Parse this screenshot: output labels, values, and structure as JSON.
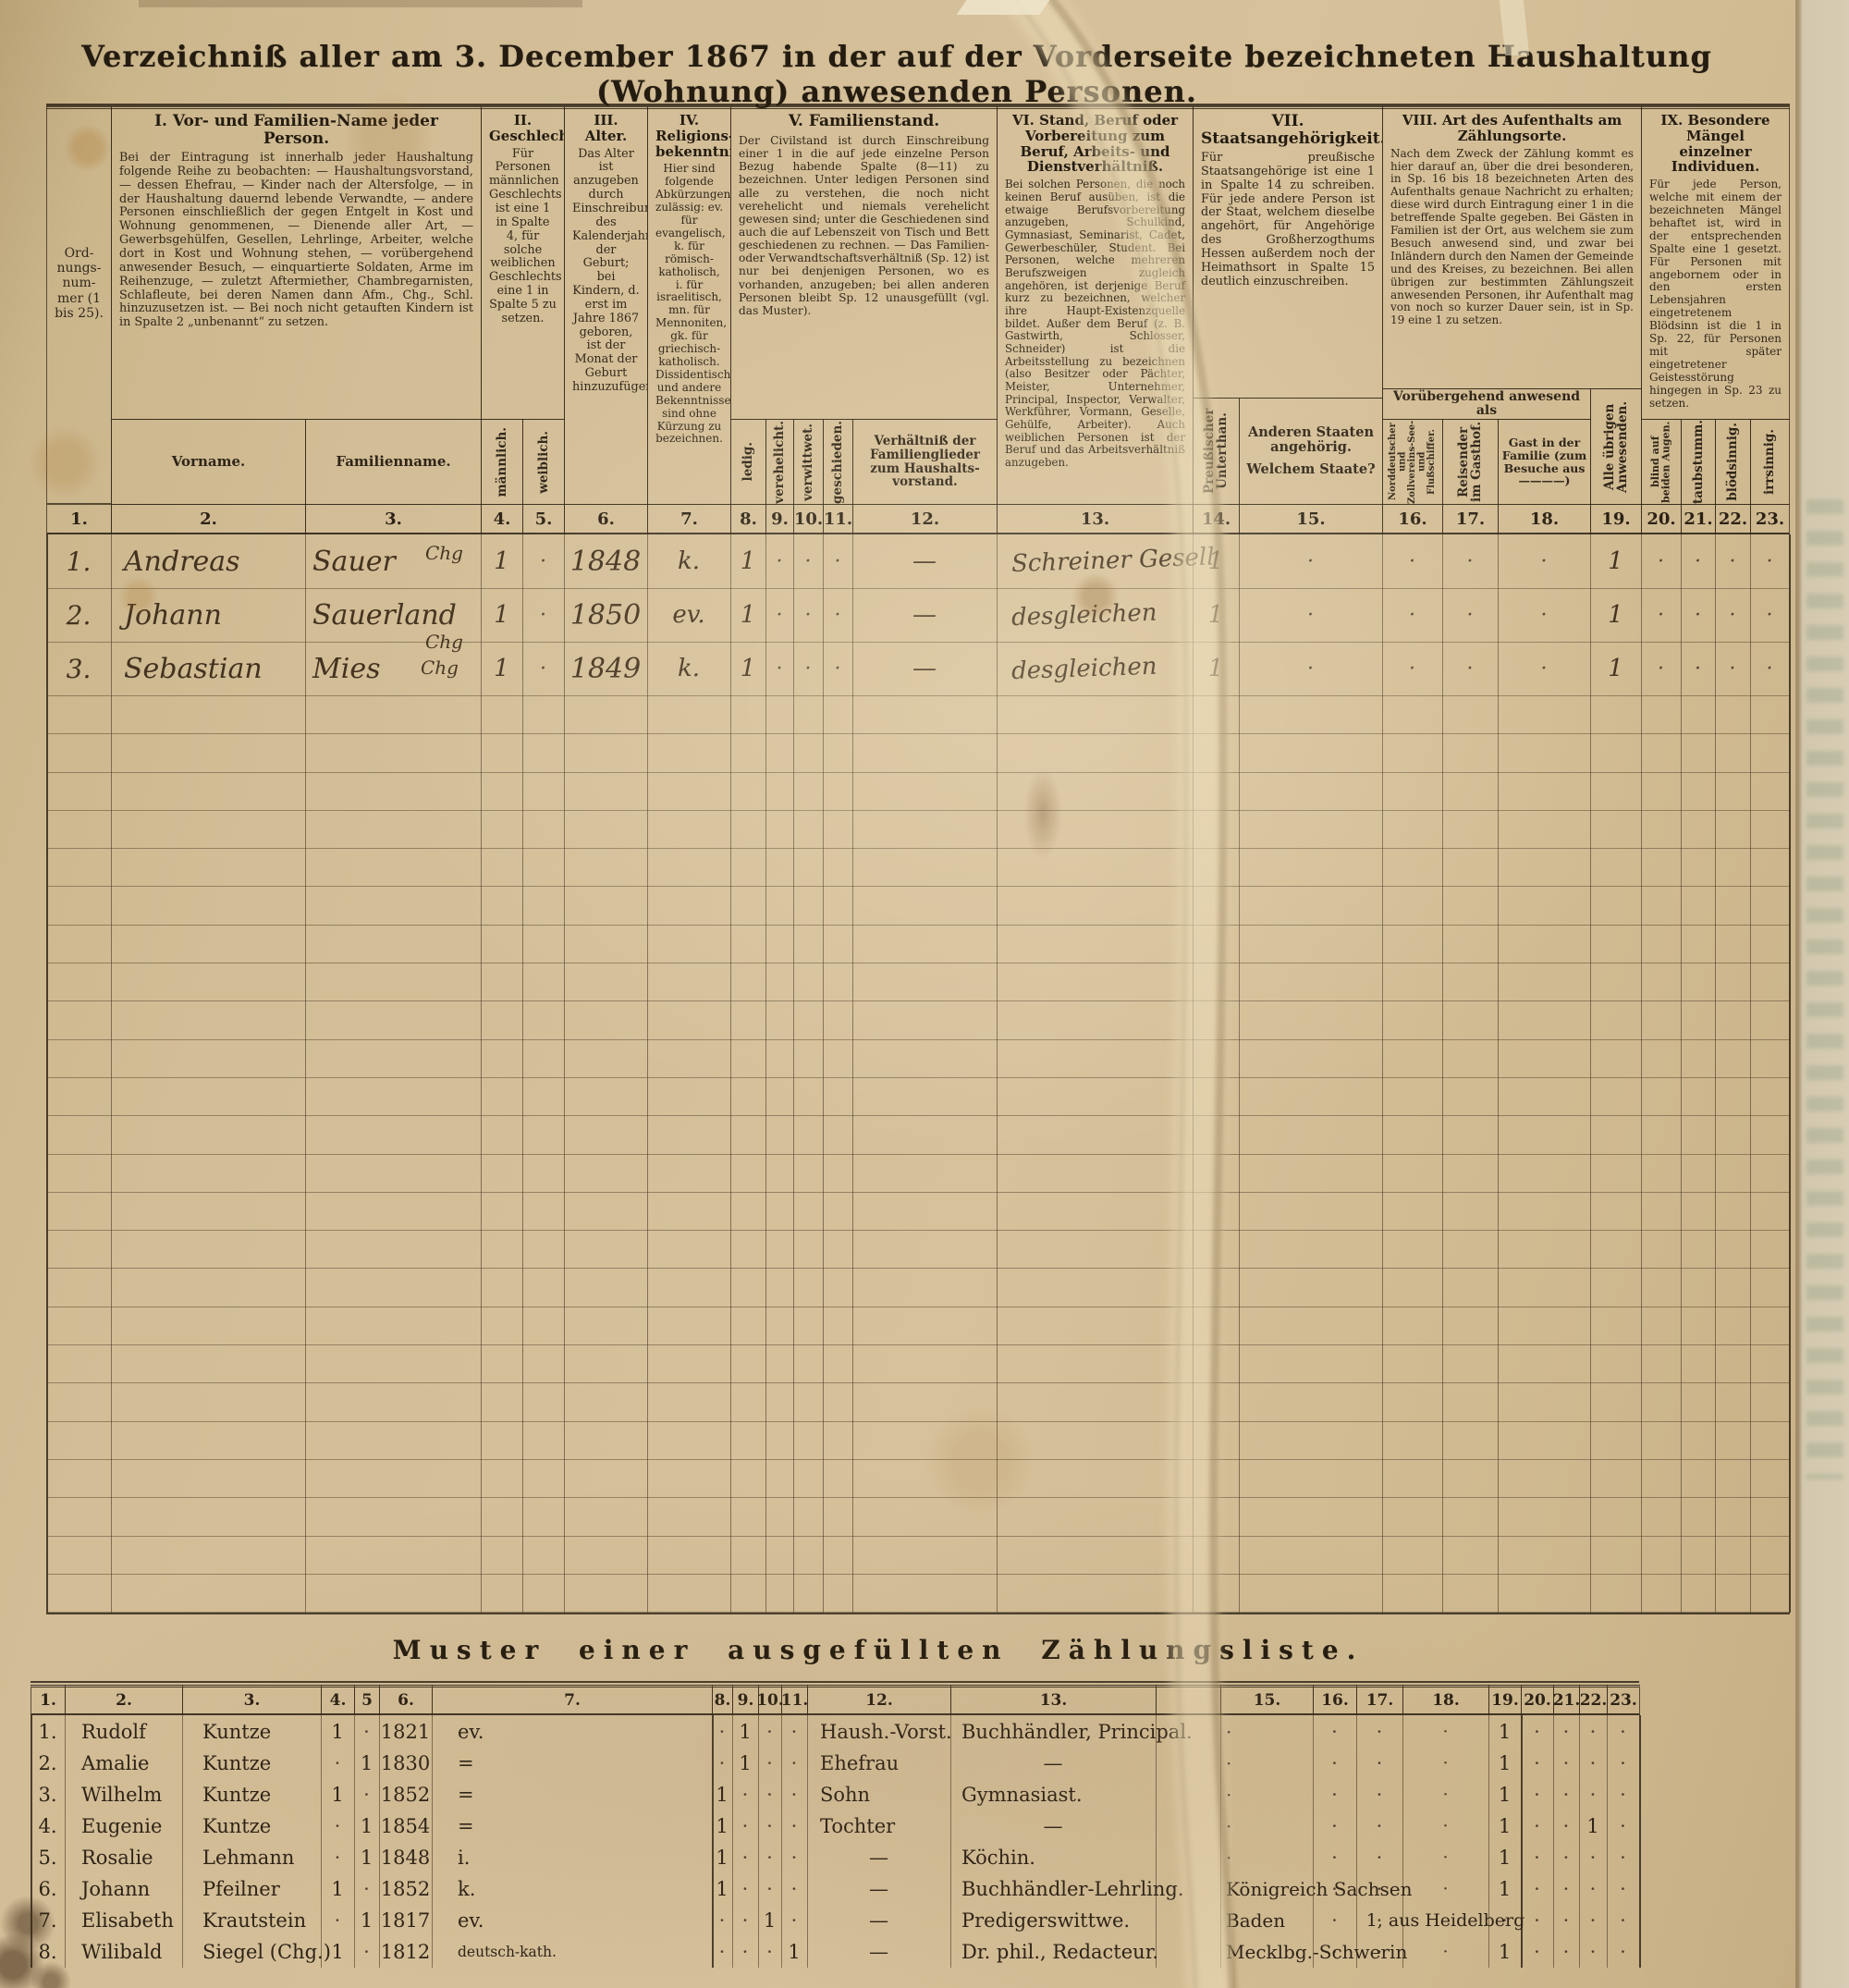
{
  "page": {
    "title": "Verzeichniß aller am 3. December 1867 in der auf der Vorderseite bezeichneten Haushaltung (Wohnung) anwesenden Personen."
  },
  "main_table": {
    "ord_label": "Ord-nungs-num-mer (1 bis 25).",
    "groups": {
      "g1": {
        "title": "I. Vor- und Familien-Name jeder Person.",
        "body": "Bei der Eintragung ist innerhalb jeder Haushaltung folgende Reihe zu beobachten: — Haushaltungsvorstand, — dessen Ehefrau, — Kinder nach der Altersfolge, — in der Haushaltung dauernd lebende Verwandte, — andere Personen einschließlich der gegen Entgelt in Kost und Wohnung genommenen, — Dienende aller Art, — Gewerbsgehülfen, Gesellen, Lehrlinge, Arbeiter, welche dort in Kost und Wohnung stehen, — vorübergehend anwesender Besuch, — einquartierte Soldaten, Arme im Reihenzuge, — zuletzt Aftermiether, Chambregarnisten, Schlafleute, bei deren Namen dann Afm., Chg., Schl. hinzuzusetzen ist. — Bei noch nicht getauften Kindern ist in Spalte 2 „unbenannt“ zu setzen."
      },
      "g2": {
        "title": "II. Geschlecht.",
        "body": "Für Personen männlichen Geschlechts ist eine 1 in Spalte 4, für solche weiblichen Geschlechts eine 1 in Spalte 5 zu setzen."
      },
      "g3": {
        "title": "III. Alter.",
        "body": "Das Alter ist anzugeben durch Einschreibung des Kalenderjahres der Geburt; bei Kindern, d. erst im Jahre 1867 geboren, ist der Monat der Geburt hinzuzufügen."
      },
      "g4": {
        "title": "IV. Religions-bekenntniß.",
        "body": "Hier sind folgende Abkürzungen zulässig: ev. für evangelisch, k. für römisch-katholisch, i. für israelitisch, mn. für Mennoniten, gk. für griechisch-katholisch. Dissidentische und andere Bekenntnisse sind ohne Kürzung zu bezeichnen."
      },
      "g5": {
        "title": "V. Familienstand.",
        "body": "Der Civilstand ist durch Einschreibung einer 1 in die auf jede einzelne Person Bezug habende Spalte (8—11) zu bezeichnen. Unter ledigen Personen sind alle zu verstehen, die noch nicht verehelicht und niemals verehelicht gewesen sind; unter die Geschiedenen sind auch die auf Lebenszeit von Tisch und Bett geschiedenen zu rechnen. — Das Familien- oder Verwandtschaftsverhältniß (Sp. 12) ist nur bei denjenigen Personen, wo es vorhanden, anzugeben; bei allen anderen Personen bleibt Sp. 12 unausgefüllt (vgl. das Muster)."
      },
      "g6": {
        "title": "VI. Stand, Beruf oder Vorbereitung zum Beruf, Arbeits- und Dienstverhältniß.",
        "body": "Bei solchen Personen, die noch keinen Beruf ausüben, ist die etwaige Berufsvorbereitung anzugeben, Schulkind, Gymnasiast, Seminarist, Cadet, Gewerbeschüler, Student. Bei Personen, welche mehreren Berufszweigen zugleich angehören, ist derjenige Beruf kurz zu bezeichnen, welcher ihre Haupt-Existenzquelle bildet. Außer dem Beruf (z. B. Gastwirth, Schlosser, Schneider) ist die Arbeitsstellung zu bezeichnen (also Besitzer oder Pächter, Meister, Unternehmer, Principal, Inspector, Verwalter, Werkführer, Vormann, Geselle, Gehülfe, Arbeiter). Auch weiblichen Personen ist der Beruf und das Arbeitsverhältniß anzugeben."
      },
      "g7": {
        "title": "VII. Staatsangehörigkeit.",
        "body": "Für preußische Staatsangehörige ist eine 1 in Spalte 14 zu schreiben. Für jede andere Person ist der Staat, welchem dieselbe angehört, für Angehörige des Großherzogthums Hessen außerdem noch der Heimathsort in Spalte 15 deutlich einzuschreiben."
      },
      "g8": {
        "title": "VIII. Art des Aufenthalts am Zählungsorte.",
        "body": "Nach dem Zweck der Zählung kommt es hier darauf an, über die drei besonderen, in Sp. 16 bis 18 bezeichneten Arten des Aufenthalts genaue Nachricht zu erhalten; diese wird durch Eintragung einer 1 in die betreffende Spalte gegeben. Bei Gästen in Familien ist der Ort, aus welchem sie zum Besuch anwesend sind, und zwar bei Inländern durch den Namen der Gemeinde und des Kreises, zu bezeichnen. Bei allen übrigen zur bestimmten Zählungszeit anwesenden Personen, ihr Aufenthalt mag von noch so kurzer Dauer sein, ist in Sp. 19 eine 1 zu setzen."
      },
      "g9": {
        "title": "IX. Besondere Mängel einzelner Individuen.",
        "body": "Für jede Person, welche mit einem der bezeichneten Mängel behaftet ist, wird in der entsprechenden Spalte eine 1 gesetzt. Für Personen mit angebornem oder in den ersten Lebensjahren eingetretenem Blödsinn ist die 1 in Sp. 22, für Personen mit später eingetretener Geistesstörung hingegen in Sp. 23 zu setzen."
      }
    },
    "sub": {
      "vorname": "Vorname.",
      "familienname": "Familienname.",
      "maennlich": "männlich.",
      "weiblich": "weiblich.",
      "ledig": "ledig.",
      "verehelicht": "verehelicht.",
      "verwittwet": "verwittwet.",
      "geschieden": "geschieden.",
      "verhaeltniss": "Verhältniß der Familienglieder zum Haushalts-vorstand.",
      "preussisch": "Preußischer Unterthan.",
      "andere_staaten": "Anderen Staaten angehörig.",
      "welchem_staate": "Welchem Staate?",
      "voruebergehend": "Vorübergehend anwesend als",
      "schiffer": "Norddeutscher und Zollvereins-See- und Flußschiffer.",
      "gasthof": "Reisender im Gasthof.",
      "gast": "Gast in der Familie (zum Besuche aus ————)",
      "uebrige": "Alle übrigen Anwesenden.",
      "blind": "blind auf beiden Augen.",
      "taubstumm": "taubstumm.",
      "bloedsinnig": "blödsinnig.",
      "irrsinnig": "irrsinnig."
    },
    "column_numbers": [
      "1.",
      "2.",
      "3.",
      "4.",
      "5.",
      "6.",
      "7.",
      "8.",
      "9.",
      "10.",
      "11.",
      "12.",
      "13.",
      "14.",
      "15.",
      "16.",
      "17.",
      "18.",
      "19.",
      "20.",
      "21.",
      "22.",
      "23."
    ],
    "entries": [
      {
        "cells": [
          "1.",
          "Andreas",
          "Sauer",
          "1",
          "·",
          "1848",
          "k.",
          "1",
          "·",
          "·",
          "·",
          "—",
          "Schreiner Gesell",
          "1",
          "·",
          "·",
          "·",
          "·",
          "1",
          "·",
          "·",
          "·",
          "·"
        ],
        "annotation": "Chg"
      },
      {
        "cells": [
          "2.",
          "Johann",
          "Sauerland",
          "1",
          "·",
          "1850",
          "ev.",
          "1",
          "·",
          "·",
          "·",
          "—",
          "desgleichen",
          "1",
          "·",
          "·",
          "·",
          "·",
          "1",
          "·",
          "·",
          "·",
          "·"
        ]
      },
      {
        "cells": [
          "3.",
          "Sebastian",
          "Mies",
          "1",
          "·",
          "1849",
          "k.",
          "1",
          "·",
          "·",
          "·",
          "—",
          "desgleichen",
          "1",
          "·",
          "·",
          "·",
          "·",
          "1",
          "·",
          "·",
          "·",
          "·"
        ],
        "annotation": "Chg",
        "annotation2": "Chg"
      }
    ]
  },
  "muster": {
    "title": "Muster einer ausgefüllten Zählungsliste.",
    "column_numbers": [
      "1.",
      "2.",
      "3.",
      "4.",
      "5",
      "6.",
      "7.",
      "8.",
      "9.",
      "10.",
      "11.",
      "12.",
      "13.",
      "",
      "15.",
      "16.",
      "17.",
      "18.",
      "19.",
      "20.",
      "21.",
      "22.",
      "23."
    ],
    "rows": [
      [
        "1.",
        "Rudolf",
        "Kuntze",
        "1",
        "·",
        "1821",
        "ev.",
        "·",
        "1",
        "·",
        "·",
        "Haush.-Vorst.",
        "Buchhändler, Principal.",
        "",
        "·",
        "·",
        "·",
        "·",
        "1",
        "·",
        "·",
        "·",
        "·"
      ],
      [
        "2.",
        "Amalie",
        "Kuntze",
        "·",
        "1",
        "1830",
        "=",
        "·",
        "1",
        "·",
        "·",
        "Ehefrau",
        "—",
        "",
        "·",
        "·",
        "·",
        "·",
        "1",
        "·",
        "·",
        "·",
        "·"
      ],
      [
        "3.",
        "Wilhelm",
        "Kuntze",
        "1",
        "·",
        "1852",
        "=",
        "1",
        "·",
        "·",
        "·",
        "Sohn",
        "Gymnasiast.",
        "",
        "·",
        "·",
        "·",
        "·",
        "1",
        "·",
        "·",
        "·",
        "·"
      ],
      [
        "4.",
        "Eugenie",
        "Kuntze",
        "·",
        "1",
        "1854",
        "=",
        "1",
        "·",
        "·",
        "·",
        "Tochter",
        "—",
        "",
        "·",
        "·",
        "·",
        "·",
        "1",
        "·",
        "·",
        "1",
        "·"
      ],
      [
        "5.",
        "Rosalie",
        "Lehmann",
        "·",
        "1",
        "1848",
        "i.",
        "1",
        "·",
        "·",
        "·",
        "—",
        "Köchin.",
        "",
        "·",
        "·",
        "·",
        "·",
        "1",
        "·",
        "·",
        "·",
        "·"
      ],
      [
        "6.",
        "Johann",
        "Pfeilner",
        "1",
        "·",
        "1852",
        "k.",
        "1",
        "·",
        "·",
        "·",
        "—",
        "Buchhändler-Lehrling.",
        "",
        "Königreich Sachsen",
        "·",
        "·",
        "·",
        "1",
        "·",
        "·",
        "·",
        "·"
      ],
      [
        "7.",
        "Elisabeth",
        "Krautstein",
        "·",
        "1",
        "1817",
        "ev.",
        "·",
        "·",
        "1",
        "·",
        "—",
        "Predigerswittwe.",
        "",
        "Baden",
        "·",
        "·",
        "1, aus Heidelberg",
        "·",
        "·",
        "·",
        "·",
        "·"
      ],
      [
        "8.",
        "Wilibald",
        "Siegel (Chg.)",
        "1",
        "·",
        "1812",
        "deutsch-kath.",
        "·",
        "·",
        "·",
        "1",
        "—",
        "Dr. phil., Redacteur.",
        "",
        "Mecklbg.-Schwerin",
        "·",
        "·",
        "·",
        "1",
        "·",
        "·",
        "·",
        "·"
      ]
    ]
  }
}
